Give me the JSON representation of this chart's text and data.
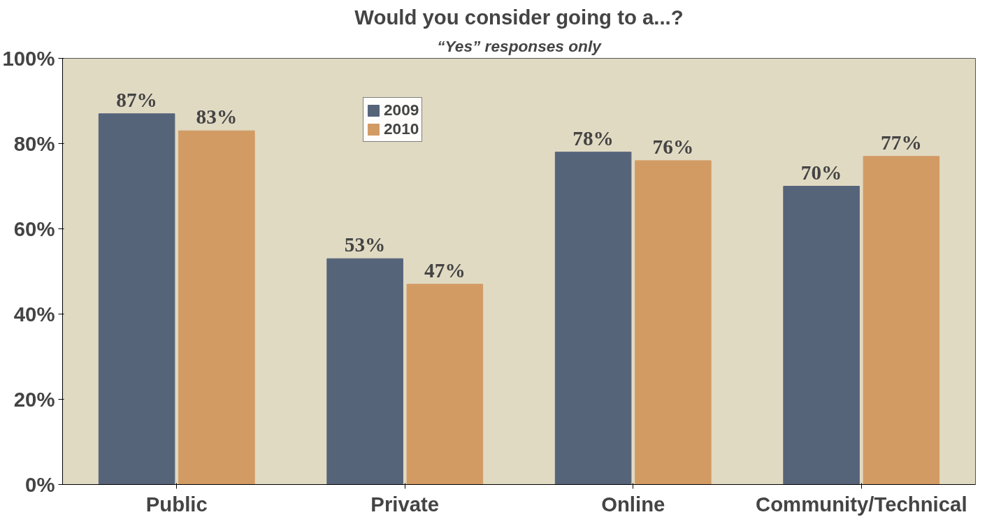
{
  "chart_data": {
    "type": "bar",
    "title": "Would you consider going to a...?",
    "subtitle": "“Yes” responses only",
    "categories": [
      "Public",
      "Private",
      "Online",
      "Community/Technical"
    ],
    "series": [
      {
        "name": "2009",
        "color": "#56647a",
        "values": [
          87,
          53,
          78,
          70
        ]
      },
      {
        "name": "2010",
        "color": "#d39b64",
        "values": [
          83,
          47,
          76,
          77
        ]
      }
    ],
    "ylim": [
      0,
      100
    ],
    "yticks": [
      {
        "value": 0,
        "label": "0%"
      },
      {
        "value": 20,
        "label": "20%"
      },
      {
        "value": 40,
        "label": "40%"
      },
      {
        "value": 60,
        "label": "60%"
      },
      {
        "value": 80,
        "label": "80%"
      },
      {
        "value": 100,
        "label": "100%"
      }
    ],
    "value_labels": [
      [
        "87%",
        "53%",
        "78%",
        "70%"
      ],
      [
        "83%",
        "47%",
        "76%",
        "77%"
      ]
    ],
    "legend": "top",
    "grid": false
  }
}
